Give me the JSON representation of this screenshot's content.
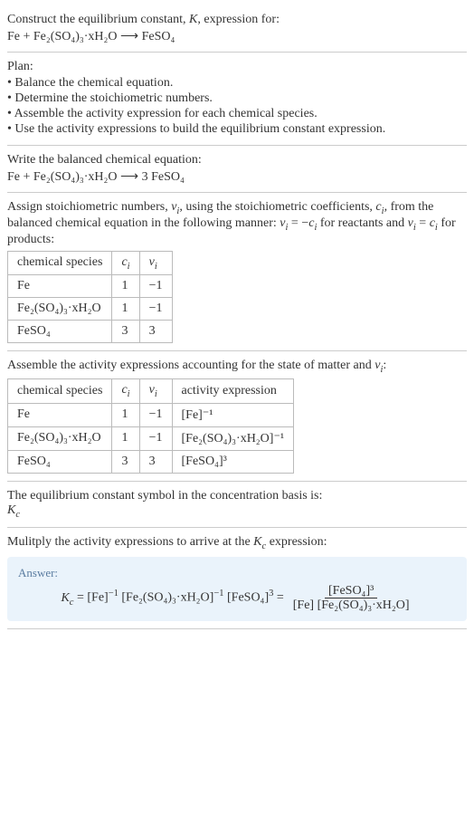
{
  "header": {
    "prompt": "Construct the equilibrium constant, K, expression for:",
    "equation_unbalanced": "Fe + Fe₂(SO₄)₃·xH₂O ⟶ FeSO₄"
  },
  "plan": {
    "title": "Plan:",
    "items": [
      "• Balance the chemical equation.",
      "• Determine the stoichiometric numbers.",
      "• Assemble the activity expression for each chemical species.",
      "• Use the activity expressions to build the equilibrium constant expression."
    ]
  },
  "balanced": {
    "title": "Write the balanced chemical equation:",
    "equation": "Fe + Fe₂(SO₄)₃·xH₂O ⟶ 3 FeSO₄"
  },
  "stoich_intro": "Assign stoichiometric numbers, νᵢ, using the stoichiometric coefficients, cᵢ, from the balanced chemical equation in the following manner: νᵢ = −cᵢ for reactants and νᵢ = cᵢ for products:",
  "stoich_table": {
    "headers": [
      "chemical species",
      "cᵢ",
      "νᵢ"
    ],
    "rows": [
      {
        "species": "Fe",
        "c": "1",
        "v": "−1"
      },
      {
        "species": "Fe₂(SO₄)₃·xH₂O",
        "c": "1",
        "v": "−1"
      },
      {
        "species": "FeSO₄",
        "c": "3",
        "v": "3"
      }
    ]
  },
  "activity_intro": "Assemble the activity expressions accounting for the state of matter and νᵢ:",
  "activity_table": {
    "headers": [
      "chemical species",
      "cᵢ",
      "νᵢ",
      "activity expression"
    ],
    "rows": [
      {
        "species": "Fe",
        "c": "1",
        "v": "−1",
        "act": "[Fe]⁻¹"
      },
      {
        "species": "Fe₂(SO₄)₃·xH₂O",
        "c": "1",
        "v": "−1",
        "act": "[Fe₂(SO₄)₃·xH₂O]⁻¹"
      },
      {
        "species": "FeSO₄",
        "c": "3",
        "v": "3",
        "act": "[FeSO₄]³"
      }
    ]
  },
  "kc_symbol": {
    "line1": "The equilibrium constant symbol in the concentration basis is:",
    "line2": "K𝒸"
  },
  "multiply": "Mulitply the activity expressions to arrive at the K𝒸 expression:",
  "answer": {
    "label": "Answer:",
    "lhs": "K𝒸 = [Fe]⁻¹ [Fe₂(SO₄)₃·xH₂O]⁻¹ [FeSO₄]³ =",
    "frac_num": "[FeSO₄]³",
    "frac_den": "[Fe] [Fe₂(SO₄)₃·xH₂O]"
  },
  "style": {
    "border_color": "#cccccc",
    "table_border": "#bbbbbb",
    "answer_bg": "#eaf3fb",
    "answer_label_color": "#5a7ca0",
    "text_color": "#333333",
    "font_family": "Georgia, Times New Roman, serif",
    "base_fontsize": 14
  }
}
